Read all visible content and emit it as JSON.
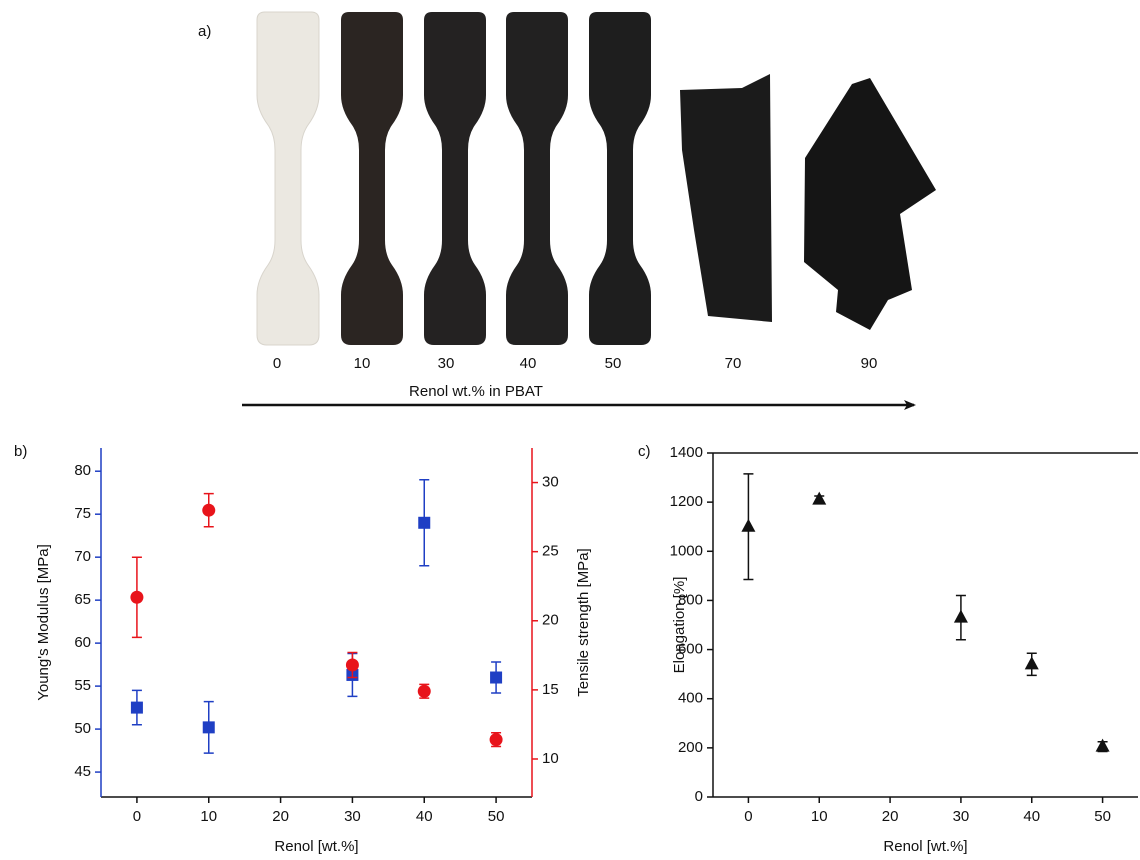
{
  "photo_panel": {
    "label": "a)",
    "sample_labels": [
      0,
      10,
      30,
      40,
      50,
      70,
      90
    ],
    "axis_label": "Renol wt.% in PBAT"
  },
  "chart_data": [
    {
      "type": "scatter",
      "panel_label": "b)",
      "x": [
        0,
        10,
        30,
        40,
        50
      ],
      "xlabel": "Renol [wt.%]",
      "xlim": [
        -5,
        55
      ],
      "xticks": [
        0,
        10,
        20,
        30,
        40,
        50
      ],
      "ylabel": "Young's Modulus [MPa]",
      "ylim": [
        42.1,
        82.7
      ],
      "yticks": [
        45,
        50,
        55,
        60,
        65,
        70,
        75,
        80
      ],
      "y_axis_color": "#1f3fc4",
      "y2label": "Tensile strength [MPa]",
      "y2lim": [
        7.25,
        32.5
      ],
      "y2ticks": [
        10,
        15,
        20,
        25,
        30
      ],
      "y2_axis_color": "#e8141b",
      "series": [
        {
          "color": "#1f3fc4",
          "marker": "square",
          "axis": "y",
          "values": [
            52.5,
            50.2,
            56.3,
            74,
            56
          ],
          "errors": [
            2,
            3,
            2.5,
            5,
            1.8
          ]
        },
        {
          "color": "#e8141b",
          "marker": "circle",
          "axis": "y2",
          "values": [
            21.7,
            28,
            16.8,
            14.9,
            11.4
          ],
          "errors": [
            2.9,
            1.2,
            0.9,
            0.5,
            0.5
          ]
        }
      ]
    },
    {
      "type": "scatter",
      "panel_label": "c)",
      "x": [
        0,
        10,
        30,
        40,
        50
      ],
      "xlabel": "Renol [wt.%]",
      "xlim": [
        -5,
        55
      ],
      "xticks": [
        0,
        10,
        20,
        30,
        40,
        50
      ],
      "ylabel": "Elongation [%]",
      "ylim": [
        0,
        1400
      ],
      "yticks": [
        0,
        200,
        400,
        600,
        800,
        1000,
        1200,
        1400
      ],
      "y_axis_color": "#111111",
      "top_frame": true,
      "series": [
        {
          "color": "#111111",
          "marker": "triangle",
          "axis": "y",
          "values": [
            1100,
            1210,
            730,
            540,
            205
          ],
          "errors": [
            215,
            15,
            90,
            45,
            20
          ]
        }
      ]
    }
  ]
}
